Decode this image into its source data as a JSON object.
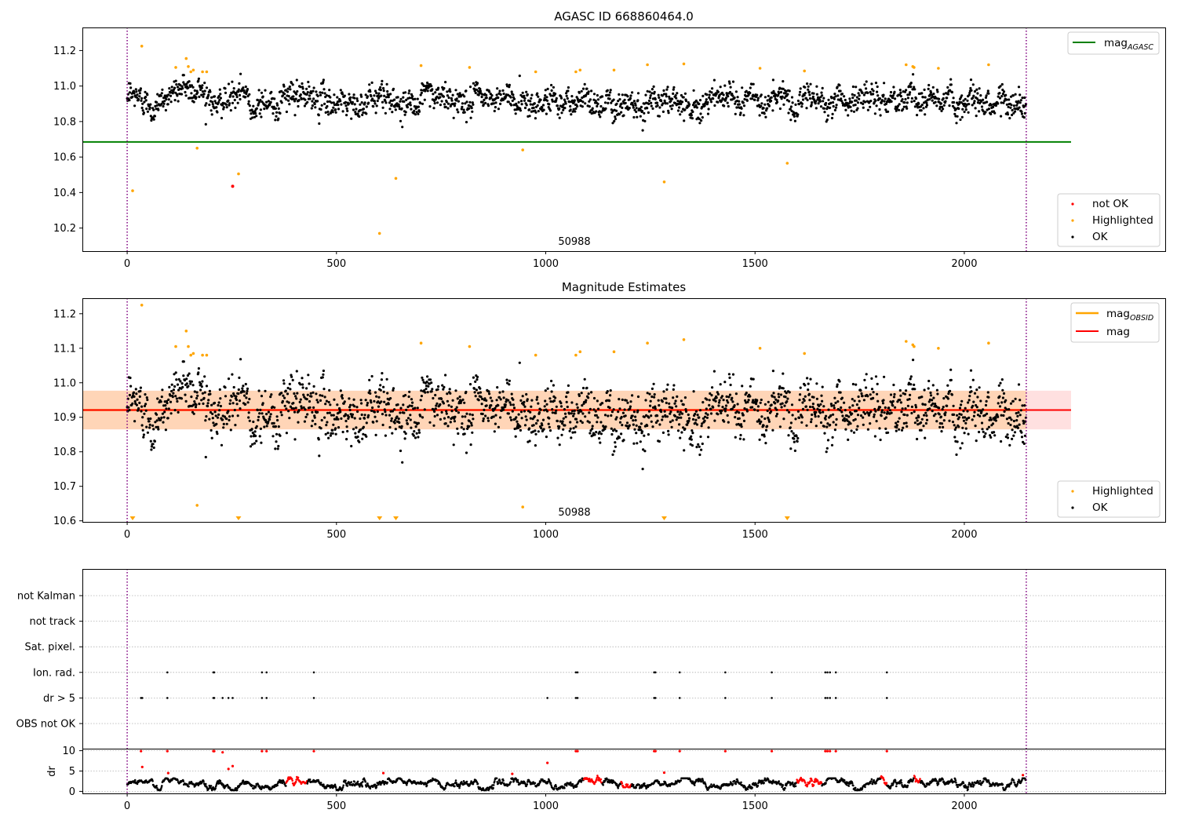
{
  "chart_data": [
    {
      "type": "scatter",
      "title": "AGASC ID 668860464.0",
      "xlim": [
        -107,
        2480
      ],
      "ylim": [
        10.07,
        11.33
      ],
      "x_ticks": [
        "0",
        "500",
        "1000",
        "1500",
        "2000"
      ],
      "y_ticks": [
        "10.2",
        "10.4",
        "10.6",
        "10.8",
        "11.0",
        "11.2"
      ],
      "obsid_text": "50988",
      "obs_boundaries_x": [
        0,
        2148
      ],
      "mag_agasc": 10.685,
      "mag_agasc_xrange": [
        -107,
        2255
      ],
      "ok_series": {
        "x_range": [
          0,
          2148
        ],
        "y_center": 10.922,
        "y_spread": 0.05
      },
      "not_ok": [
        {
          "x": 252,
          "y": 10.435
        }
      ],
      "highlighted": [
        {
          "x": 13,
          "y": 10.41
        },
        {
          "x": 35,
          "y": 11.225
        },
        {
          "x": 116,
          "y": 11.105
        },
        {
          "x": 141,
          "y": 11.155
        },
        {
          "x": 146,
          "y": 11.11
        },
        {
          "x": 152,
          "y": 11.08
        },
        {
          "x": 158,
          "y": 11.09
        },
        {
          "x": 167,
          "y": 10.65
        },
        {
          "x": 180,
          "y": 11.08
        },
        {
          "x": 190,
          "y": 11.08
        },
        {
          "x": 266,
          "y": 10.505
        },
        {
          "x": 603,
          "y": 10.17
        },
        {
          "x": 642,
          "y": 10.48
        },
        {
          "x": 702,
          "y": 11.115
        },
        {
          "x": 818,
          "y": 11.105
        },
        {
          "x": 945,
          "y": 10.64
        },
        {
          "x": 976,
          "y": 11.08
        },
        {
          "x": 1072,
          "y": 11.08
        },
        {
          "x": 1082,
          "y": 11.09
        },
        {
          "x": 1163,
          "y": 11.09
        },
        {
          "x": 1243,
          "y": 11.12
        },
        {
          "x": 1283,
          "y": 10.46
        },
        {
          "x": 1330,
          "y": 11.125
        },
        {
          "x": 1512,
          "y": 11.1
        },
        {
          "x": 1577,
          "y": 10.565
        },
        {
          "x": 1618,
          "y": 11.085
        },
        {
          "x": 1861,
          "y": 11.12
        },
        {
          "x": 1877,
          "y": 11.11
        },
        {
          "x": 1880,
          "y": 11.105
        },
        {
          "x": 1938,
          "y": 11.1
        },
        {
          "x": 2058,
          "y": 11.12
        }
      ],
      "legend_top": [
        {
          "label": "mag",
          "sub": "AGASC",
          "color": "#008000"
        }
      ],
      "legend_bottom": [
        {
          "label": "not OK",
          "color": "#ff0000"
        },
        {
          "label": "Highlighted",
          "color": "#ffa500"
        },
        {
          "label": "OK",
          "color": "#000000"
        }
      ]
    },
    {
      "type": "scatter",
      "title": "Magnitude Estimates",
      "xlim": [
        -107,
        2480
      ],
      "ylim": [
        10.597,
        11.245
      ],
      "x_ticks": [
        "0",
        "500",
        "1000",
        "1500",
        "2000"
      ],
      "y_ticks": [
        "10.6",
        "10.7",
        "10.8",
        "10.9",
        "11.0",
        "11.1",
        "11.2"
      ],
      "obsid_text": "50988",
      "obs_boundaries_x": [
        0,
        2148
      ],
      "mag": 10.921,
      "mag_band": [
        10.865,
        10.977
      ],
      "mag_xrange": [
        -107,
        2255
      ],
      "mag_obsid": 10.921,
      "mag_obsid_xrange": [
        -107,
        2148
      ],
      "ok_series": {
        "x_range": [
          0,
          2148
        ],
        "y_center": 10.922,
        "y_spread": 0.05
      },
      "highlighted": [
        {
          "x": 35,
          "y": 11.225
        },
        {
          "x": 116,
          "y": 11.105
        },
        {
          "x": 141,
          "y": 11.15
        },
        {
          "x": 146,
          "y": 11.105
        },
        {
          "x": 152,
          "y": 11.08
        },
        {
          "x": 158,
          "y": 11.085
        },
        {
          "x": 167,
          "y": 10.645
        },
        {
          "x": 180,
          "y": 11.08
        },
        {
          "x": 190,
          "y": 11.08
        },
        {
          "x": 702,
          "y": 11.115
        },
        {
          "x": 818,
          "y": 11.105
        },
        {
          "x": 945,
          "y": 10.64
        },
        {
          "x": 976,
          "y": 11.08
        },
        {
          "x": 1072,
          "y": 11.08
        },
        {
          "x": 1082,
          "y": 11.09
        },
        {
          "x": 1163,
          "y": 11.09
        },
        {
          "x": 1243,
          "y": 11.115
        },
        {
          "x": 1330,
          "y": 11.125
        },
        {
          "x": 1512,
          "y": 11.1
        },
        {
          "x": 1618,
          "y": 11.085
        },
        {
          "x": 1861,
          "y": 11.12
        },
        {
          "x": 1877,
          "y": 11.11
        },
        {
          "x": 1880,
          "y": 11.105
        },
        {
          "x": 1938,
          "y": 11.1
        },
        {
          "x": 2058,
          "y": 11.115
        }
      ],
      "below_range_markers_x": [
        13,
        266,
        603,
        642,
        1283,
        1577
      ],
      "legend_top": [
        {
          "label": "mag",
          "sub": "OBSID",
          "color": "#ffa500"
        },
        {
          "label": "mag",
          "sub": "",
          "color": "#ff0000"
        }
      ],
      "legend_bottom": [
        {
          "label": "Highlighted",
          "color": "#ffa500"
        },
        {
          "label": "OK",
          "color": "#000000"
        }
      ]
    },
    {
      "type": "scatter",
      "title": "",
      "xlim": [
        -107,
        2480
      ],
      "x_ticks": [
        "0",
        "500",
        "1000",
        "1500",
        "2000"
      ],
      "obs_boundaries_x": [
        0,
        2148
      ],
      "flag_labels": [
        "not Kalman",
        "not track",
        "Sat. pixel.",
        "Ion. rad.",
        "dr > 5",
        "OBS not OK"
      ],
      "flag_points": {
        "Ion. rad.": [
          96,
          206,
          208,
          322,
          333,
          446,
          1072,
          1076,
          1259,
          1262,
          1320,
          1429,
          1540,
          1668,
          1673,
          1679,
          1693,
          1815
        ],
        "dr > 5": [
          33,
          36,
          96,
          206,
          208,
          228,
          242,
          252,
          322,
          333,
          446,
          1004,
          1072,
          1076,
          1259,
          1262,
          1320,
          1429,
          1540,
          1668,
          1673,
          1679,
          1693,
          1815
        ]
      },
      "dr_ylabel": "dr",
      "dr_ylim": [
        -0.5,
        10.5
      ],
      "dr_ticks": [
        "0",
        "5",
        "10"
      ],
      "dr_red_points": [
        {
          "x": 33,
          "y": 9.9
        },
        {
          "x": 36,
          "y": 6.0
        },
        {
          "x": 96,
          "y": 9.9
        },
        {
          "x": 98,
          "y": 4.5
        },
        {
          "x": 206,
          "y": 9.9
        },
        {
          "x": 208,
          "y": 9.9
        },
        {
          "x": 228,
          "y": 9.6
        },
        {
          "x": 242,
          "y": 5.5
        },
        {
          "x": 252,
          "y": 6.2
        },
        {
          "x": 322,
          "y": 9.9
        },
        {
          "x": 333,
          "y": 9.9
        },
        {
          "x": 446,
          "y": 9.9
        },
        {
          "x": 612,
          "y": 4.5
        },
        {
          "x": 920,
          "y": 4.3
        },
        {
          "x": 1004,
          "y": 7.0
        },
        {
          "x": 1072,
          "y": 9.9
        },
        {
          "x": 1076,
          "y": 9.9
        },
        {
          "x": 1259,
          "y": 9.9
        },
        {
          "x": 1262,
          "y": 9.9
        },
        {
          "x": 1283,
          "y": 4.6
        },
        {
          "x": 1320,
          "y": 9.9
        },
        {
          "x": 1429,
          "y": 9.9
        },
        {
          "x": 1540,
          "y": 9.9
        },
        {
          "x": 1668,
          "y": 9.9
        },
        {
          "x": 1673,
          "y": 9.9
        },
        {
          "x": 1679,
          "y": 9.9
        },
        {
          "x": 1693,
          "y": 9.9
        },
        {
          "x": 1815,
          "y": 9.9
        },
        {
          "x": 2140,
          "y": 4.0
        }
      ],
      "dr_red_clusters": [
        [
          380,
          430
        ],
        [
          1090,
          1135
        ],
        [
          1180,
          1205
        ],
        [
          1600,
          1660
        ],
        [
          1800,
          1815
        ],
        [
          1880,
          1895
        ]
      ],
      "dr_base": {
        "x_range": [
          0,
          2148
        ],
        "y_mean": 1.8,
        "y_spread": 0.7
      }
    }
  ]
}
